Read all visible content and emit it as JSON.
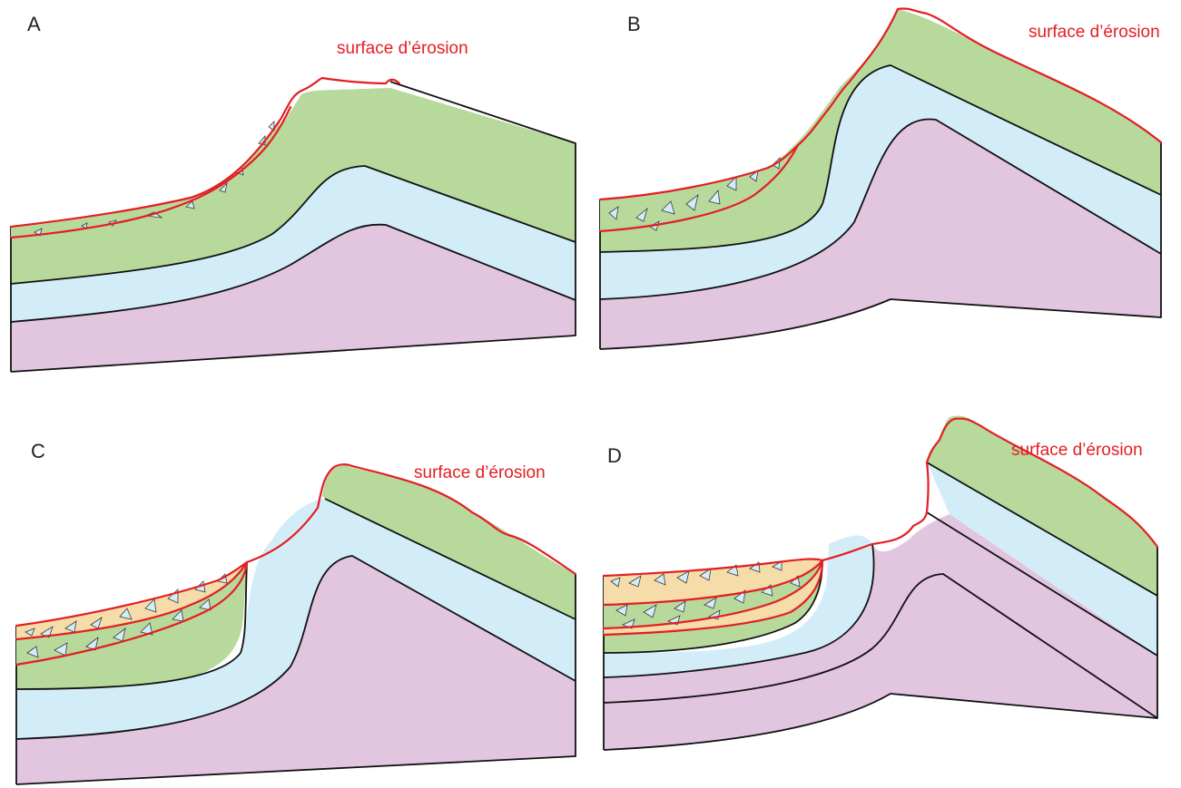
{
  "colors": {
    "green": "#b7d99b",
    "blue": "#d3edf8",
    "pink": "#e2c5df",
    "sediment": "#f6dca8",
    "erosion": "#e31e24",
    "outline": "#111111"
  },
  "panels": [
    {
      "letter": "A",
      "erosion_label": "surface d’érosion"
    },
    {
      "letter": "B",
      "erosion_label": "surface d’érosion"
    },
    {
      "letter": "C",
      "erosion_label": "surface d’érosion"
    },
    {
      "letter": "D",
      "erosion_label": "surface d’érosion"
    }
  ]
}
